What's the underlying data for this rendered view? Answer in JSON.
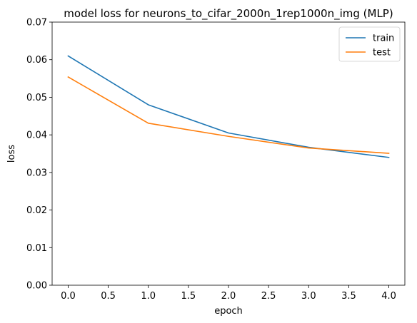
{
  "chart_data": {
    "type": "line",
    "title": "model loss for neurons_to_cifar_2000n_1rep1000n_img (MLP)",
    "xlabel": "epoch",
    "ylabel": "loss",
    "x": [
      0,
      1,
      2,
      3,
      4
    ],
    "xlim": [
      -0.2,
      4.2
    ],
    "ylim": [
      0,
      0.07
    ],
    "xticks": [
      0.0,
      0.5,
      1.0,
      1.5,
      2.0,
      2.5,
      3.0,
      3.5,
      4.0
    ],
    "xtick_labels": [
      "0.0",
      "0.5",
      "1.0",
      "1.5",
      "2.0",
      "2.5",
      "3.0",
      "3.5",
      "4.0"
    ],
    "yticks": [
      0,
      0.01,
      0.02,
      0.03,
      0.04,
      0.05,
      0.06,
      0.07
    ],
    "ytick_labels": [
      "0.00",
      "0.01",
      "0.02",
      "0.03",
      "0.04",
      "0.05",
      "0.06",
      "0.07"
    ],
    "grid": false,
    "legend_position": "top-right",
    "series": [
      {
        "name": "train",
        "color": "#1f77b4",
        "values": [
          0.061,
          0.048,
          0.0405,
          0.0367,
          0.034
        ]
      },
      {
        "name": "test",
        "color": "#ff7f0e",
        "values": [
          0.0554,
          0.0431,
          0.0396,
          0.0365,
          0.0351
        ]
      }
    ]
  }
}
